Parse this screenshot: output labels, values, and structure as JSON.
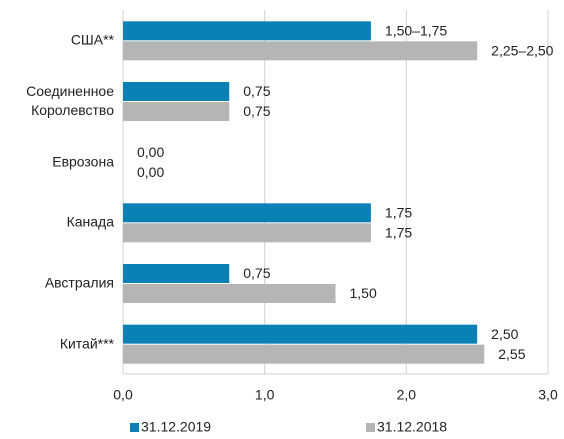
{
  "chart_data": {
    "type": "bar",
    "orientation": "horizontal",
    "categories": [
      "США**",
      "Соединенное Королевство",
      "Еврозона",
      "Канада",
      "Австралия",
      "Китай***"
    ],
    "series": [
      {
        "name": "31.12.2019",
        "color": "#0a80b4",
        "values": [
          1.75,
          0.75,
          0,
          1.75,
          0.75,
          2.5
        ],
        "value_labels": [
          "1,50–1,75",
          "0,75",
          "0,00",
          "1,75",
          "0,75",
          "2,50"
        ]
      },
      {
        "name": "31.12.2018",
        "color": "#b5b5b5",
        "values": [
          2.5,
          0.75,
          0,
          1.75,
          1.5,
          2.55
        ],
        "value_labels": [
          "2,25–2,50",
          "0,75",
          "0,00",
          "1,75",
          "1,50",
          "2,55"
        ]
      }
    ],
    "xlim": [
      0,
      3
    ],
    "xticks": [
      {
        "value": 0,
        "label": "0,0"
      },
      {
        "value": 1,
        "label": "1,0"
      },
      {
        "value": 2,
        "label": "2,0"
      },
      {
        "value": 3,
        "label": "3,0"
      }
    ],
    "grid": true,
    "legend": "bottom"
  }
}
